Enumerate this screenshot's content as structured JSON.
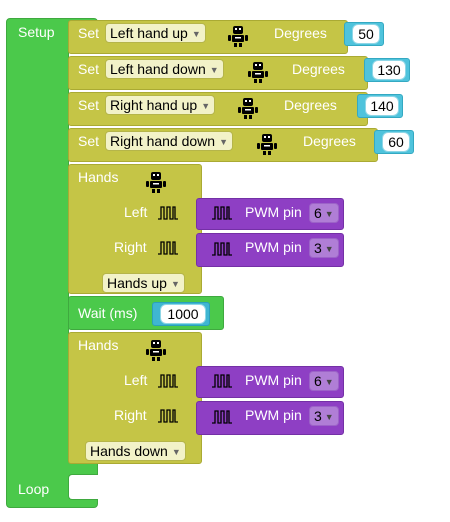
{
  "setup": {
    "label": "Setup"
  },
  "loop": {
    "label": "Loop"
  },
  "set_blocks": [
    {
      "set_label": "Set",
      "variable": "Left hand up",
      "degrees_label": "Degrees",
      "value": "50"
    },
    {
      "set_label": "Set",
      "variable": "Left hand down",
      "degrees_label": "Degrees",
      "value": "130"
    },
    {
      "set_label": "Set",
      "variable": "Right hand up",
      "degrees_label": "Degrees",
      "value": "140"
    },
    {
      "set_label": "Set",
      "variable": "Right hand down",
      "degrees_label": "Degrees",
      "value": "60"
    }
  ],
  "hands_blocks": [
    {
      "title": "Hands",
      "left_label": "Left",
      "right_label": "Right",
      "left_pwm": {
        "label": "PWM pin",
        "pin": "6"
      },
      "right_pwm": {
        "label": "PWM pin",
        "pin": "3"
      },
      "position": "Hands up"
    },
    {
      "title": "Hands",
      "left_label": "Left",
      "right_label": "Right",
      "left_pwm": {
        "label": "PWM pin",
        "pin": "6"
      },
      "right_pwm": {
        "label": "PWM pin",
        "pin": "3"
      },
      "position": "Hands down"
    }
  ],
  "wait_block": {
    "label": "Wait (ms)",
    "value": "1000"
  },
  "icons": {
    "robot": "robot-icon",
    "pwm": "pwm-signal-icon",
    "dropdown": "chevron-down-icon"
  },
  "colors": {
    "setup_green": "#4bc94b",
    "block_yellow": "#c5c546",
    "pwm_purple": "#8e3fc4",
    "number_cyan": "#4fc3dc"
  }
}
